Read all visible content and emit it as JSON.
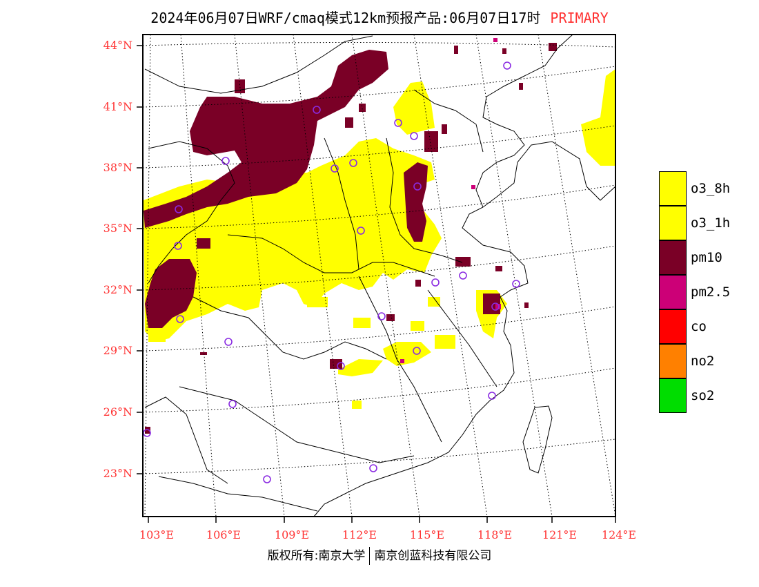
{
  "title": {
    "main": "2024年06月07日WRF/cmaq模式12km预报产品:06月07日17时",
    "tag": "PRIMARY"
  },
  "axes": {
    "lat_labels": [
      "44°N",
      "41°N",
      "38°N",
      "35°N",
      "32°N",
      "29°N",
      "26°N",
      "23°N"
    ],
    "lon_labels": [
      "103°E",
      "106°E",
      "109°E",
      "112°E",
      "115°E",
      "118°E",
      "121°E",
      "124°E"
    ]
  },
  "legend": [
    {
      "label": "o3_8h",
      "color": "#ffff00"
    },
    {
      "label": "o3_1h",
      "color": "#ffff00"
    },
    {
      "label": "pm10",
      "color": "#7a0026"
    },
    {
      "label": "pm2.5",
      "color": "#cc0077"
    },
    {
      "label": "co",
      "color": "#ff0000"
    },
    {
      "label": "no2",
      "color": "#ff8000"
    },
    {
      "label": "so2",
      "color": "#00dd00"
    }
  ],
  "footer": {
    "left": "版权所有:南京大学",
    "right": "南京创蓝科技有限公司"
  },
  "colors": {
    "o3": "#ffff00",
    "pm10": "#7a0026",
    "pm25": "#cc0077",
    "station": "#8a2be2",
    "label": "#ff3333"
  }
}
